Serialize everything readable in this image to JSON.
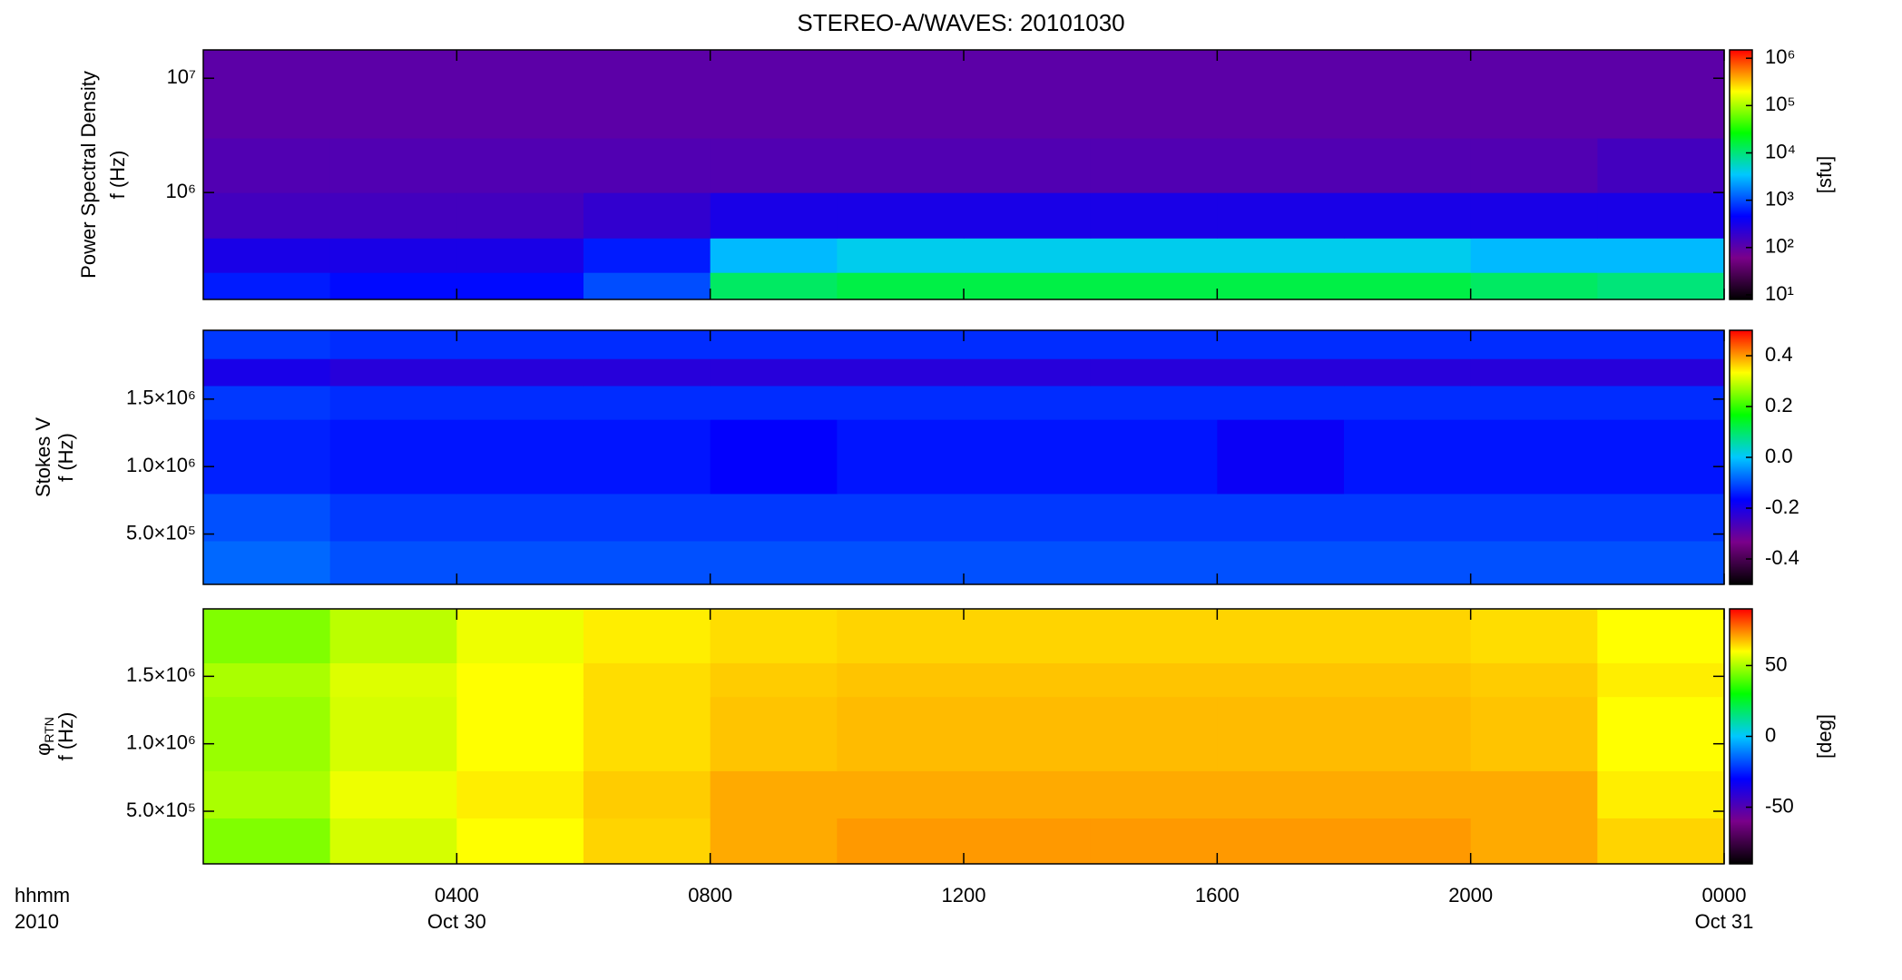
{
  "chart_data": [
    {
      "type": "heatmap",
      "title": "STEREO-A/WAVES: 20101030",
      "ylabel": [
        "Power Spectral Density",
        "f (Hz)"
      ],
      "ylog": true,
      "xlim": [
        0,
        24
      ],
      "ylim": [
        116000,
        17700000
      ],
      "yticks": [
        {
          "value": 1000000,
          "label": "10⁶"
        },
        {
          "value": 10000000,
          "label": "10⁷"
        }
      ],
      "time_edges": [
        0,
        2,
        4,
        6,
        8,
        10,
        12,
        14,
        16,
        18,
        20,
        22,
        24
      ],
      "freq_edges": [
        116000,
        200000,
        400000,
        1000000,
        3000000,
        17700000
      ],
      "z": [
        [
          600,
          500,
          500,
          1000,
          12000,
          15000,
          15000,
          15000,
          15000,
          15000,
          12000,
          10000
        ],
        [
          300,
          300,
          300,
          600,
          3000,
          4000,
          4000,
          4000,
          4000,
          4000,
          3000,
          3000
        ],
        [
          150,
          150,
          150,
          200,
          300,
          300,
          300,
          300,
          300,
          300,
          300,
          300
        ],
        [
          120,
          120,
          120,
          120,
          120,
          120,
          120,
          120,
          120,
          120,
          120,
          150
        ],
        [
          100,
          100,
          100,
          100,
          100,
          100,
          100,
          100,
          100,
          100,
          100,
          100
        ]
      ],
      "zlog": true,
      "zlim": [
        8,
        1500000
      ],
      "zticks": [
        {
          "value": 10,
          "label": "10¹"
        },
        {
          "value": 100,
          "label": "10²"
        },
        {
          "value": 1000,
          "label": "10³"
        },
        {
          "value": 10000,
          "label": "10⁴"
        },
        {
          "value": 100000,
          "label": "10⁵"
        },
        {
          "value": 1000000,
          "label": "10⁶"
        }
      ],
      "zlabel": "[sfu]",
      "colormap": [
        "#000000",
        "#7a008a",
        "#0000ff",
        "#00c8ff",
        "#00ff00",
        "#ffff00",
        "#ff0000"
      ]
    },
    {
      "type": "heatmap",
      "ylabel": [
        "Stokes V",
        "f (Hz)"
      ],
      "ylog": false,
      "xlim": [
        0,
        24
      ],
      "ylim": [
        127000,
        2010000
      ],
      "yticks": [
        {
          "value": 500000,
          "label": "5.0×10⁵"
        },
        {
          "value": 1000000,
          "label": "1.0×10⁶"
        },
        {
          "value": 1500000,
          "label": "1.5×10⁶"
        }
      ],
      "time_edges": [
        0,
        2,
        4,
        6,
        8,
        10,
        12,
        14,
        16,
        18,
        20,
        22,
        24
      ],
      "freq_edges": [
        127000,
        450000,
        800000,
        1350000,
        1600000,
        1800000,
        2010000
      ],
      "z": [
        [
          -0.08,
          -0.1,
          -0.1,
          -0.1,
          -0.1,
          -0.1,
          -0.1,
          -0.1,
          -0.1,
          -0.1,
          -0.1,
          -0.1
        ],
        [
          -0.1,
          -0.12,
          -0.12,
          -0.12,
          -0.12,
          -0.12,
          -0.12,
          -0.12,
          -0.12,
          -0.12,
          -0.12,
          -0.12
        ],
        [
          -0.14,
          -0.15,
          -0.15,
          -0.15,
          -0.17,
          -0.15,
          -0.15,
          -0.15,
          -0.18,
          -0.15,
          -0.15,
          -0.15
        ],
        [
          -0.12,
          -0.13,
          -0.13,
          -0.13,
          -0.13,
          -0.13,
          -0.13,
          -0.13,
          -0.13,
          -0.13,
          -0.13,
          -0.13
        ],
        [
          -0.2,
          -0.22,
          -0.22,
          -0.22,
          -0.22,
          -0.22,
          -0.22,
          -0.22,
          -0.22,
          -0.22,
          -0.22,
          -0.22
        ],
        [
          -0.12,
          -0.13,
          -0.13,
          -0.13,
          -0.13,
          -0.13,
          -0.13,
          -0.13,
          -0.13,
          -0.13,
          -0.13,
          -0.13
        ]
      ],
      "zlog": false,
      "zlim": [
        -0.5,
        0.5
      ],
      "zticks": [
        -0.4,
        -0.2,
        {
          "value": 0,
          "label": "0.0"
        },
        0.2,
        0.4
      ],
      "colormap": [
        "#000000",
        "#7a008a",
        "#0000ff",
        "#00c8ff",
        "#00ff00",
        "#ffff00",
        "#ff0000"
      ]
    },
    {
      "type": "heatmap",
      "ylabel": [
        "φ",
        "f (Hz)"
      ],
      "ylabel_sub": "RTN",
      "ylog": false,
      "xlim": [
        0,
        24
      ],
      "ylim": [
        110000,
        2000000
      ],
      "yticks": [
        {
          "value": 500000,
          "label": "5.0×10⁵"
        },
        {
          "value": 1000000,
          "label": "1.0×10⁶"
        },
        {
          "value": 1500000,
          "label": "1.5×10⁶"
        }
      ],
      "time_edges": [
        0,
        2,
        4,
        6,
        8,
        10,
        12,
        14,
        16,
        18,
        20,
        22,
        24
      ],
      "freq_edges": [
        110000,
        450000,
        800000,
        1350000,
        1600000,
        2000000
      ],
      "z": [
        [
          45,
          55,
          60,
          65,
          70,
          72,
          72,
          72,
          72,
          72,
          70,
          65
        ],
        [
          50,
          58,
          62,
          66,
          70,
          70,
          70,
          70,
          70,
          70,
          70,
          62
        ],
        [
          48,
          55,
          60,
          64,
          67,
          68,
          68,
          68,
          68,
          68,
          67,
          60
        ],
        [
          50,
          56,
          60,
          64,
          66,
          67,
          67,
          67,
          67,
          67,
          66,
          62
        ],
        [
          45,
          52,
          58,
          62,
          64,
          65,
          65,
          65,
          65,
          65,
          64,
          60
        ]
      ],
      "zlog": false,
      "zlim": [
        -90,
        90
      ],
      "zticks": [
        -50,
        0,
        50
      ],
      "zlabel": "[deg]",
      "colormap": [
        "#000000",
        "#7a008a",
        "#0000ff",
        "#00c8ff",
        "#00ff00",
        "#ffff00",
        "#ff0000"
      ],
      "xticks": [
        {
          "value": 4,
          "label": "0400"
        },
        {
          "value": 8,
          "label": "0800"
        },
        {
          "value": 12,
          "label": "1200"
        },
        {
          "value": 16,
          "label": "1600"
        },
        {
          "value": 20,
          "label": "2000"
        },
        {
          "value": 24,
          "label": "0000"
        }
      ],
      "xtick_dates": [
        {
          "value": 4,
          "label": "Oct 30"
        },
        {
          "value": 24,
          "label": "Oct 31"
        }
      ],
      "xaxis_label": [
        "hhmm",
        "2010"
      ]
    }
  ]
}
